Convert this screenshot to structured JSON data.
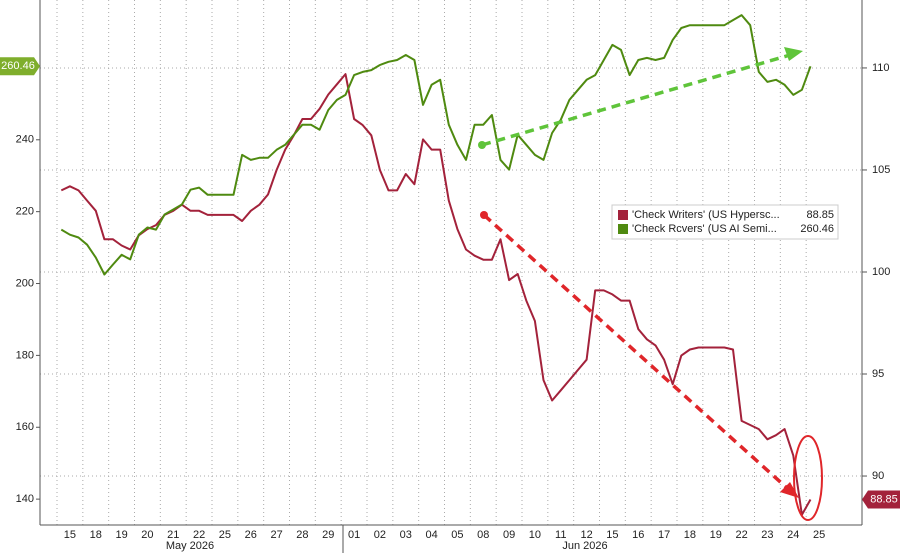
{
  "chart_data": {
    "type": "line",
    "categories": [
      null,
      "15",
      null,
      null,
      "18",
      null,
      null,
      "19",
      null,
      null,
      "20",
      null,
      null,
      "21",
      null,
      null,
      "22",
      null,
      null,
      "25",
      null,
      null,
      "26",
      null,
      null,
      "27",
      null,
      null,
      "28",
      null,
      null,
      "29",
      null,
      null,
      "01",
      null,
      null,
      "02",
      null,
      null,
      "03",
      null,
      null,
      "04",
      null,
      null,
      "05",
      null,
      null,
      "08",
      null,
      null,
      "09",
      null,
      null,
      "10",
      null,
      null,
      "11",
      null,
      null,
      "12",
      null,
      null,
      "15",
      null,
      null,
      "16",
      null,
      null,
      "17",
      null,
      null,
      "18",
      null,
      null,
      "19",
      null,
      null,
      "22",
      null,
      null,
      "23",
      null,
      null,
      "24",
      null,
      null,
      "25",
      null
    ],
    "annotations": [
      "May 2026",
      "Jun 2026"
    ],
    "series": [
      {
        "name": "'Check Writers' (US Hypersc...",
        "color": "#a3223b",
        "axis": "y2",
        "values": [
          104.0,
          104.2,
          104.0,
          103.5,
          103.0,
          101.6,
          101.6,
          101.3,
          101.1,
          101.8,
          102.1,
          102.3,
          102.8,
          103.0,
          103.3,
          103.0,
          103.0,
          102.8,
          102.8,
          102.8,
          102.8,
          102.5,
          103.0,
          103.3,
          103.8,
          105.0,
          106.0,
          106.7,
          107.5,
          107.5,
          108,
          108.7,
          109.2,
          109.7,
          107.5,
          107.2,
          106.7,
          105.0,
          104.0,
          104.0,
          104.8,
          104.3,
          106.5,
          106.0,
          106.0,
          103.5,
          102.1,
          101.1,
          100.8,
          100.6,
          100.6,
          101.6,
          99.6,
          99.9,
          98.6,
          97.6,
          94.7,
          93.7,
          94.2,
          94.7,
          95.2,
          95.7,
          99.1,
          99.1,
          98.9,
          98.6,
          98.6,
          97.2,
          96.7,
          96.4,
          95.7,
          94.5,
          95.9,
          96.2,
          96.3,
          96.3,
          96.3,
          96.3,
          96.2,
          92.7,
          92.5,
          92.3,
          91.8,
          92.0,
          92.3,
          91.0,
          88.1,
          88.85,
          null,
          null
        ]
      },
      {
        "name": "'Check Rcvers' (US AI Semi...",
        "color": "#4f8a10",
        "values": [
          215,
          213.6,
          212.8,
          210.8,
          207.2,
          202.5,
          205.3,
          208,
          206.7,
          213.6,
          215.6,
          215,
          219.2,
          220.6,
          222,
          226.1,
          226.7,
          224.7,
          224.7,
          224.7,
          224.7,
          235.8,
          234.4,
          235,
          235,
          237.2,
          238.6,
          241.4,
          244.2,
          244.2,
          242.8,
          248.3,
          251.1,
          252.5,
          258,
          258.9,
          259.4,
          260.8,
          261.7,
          262.2,
          263.6,
          262.2,
          249.7,
          255.3,
          256.7,
          244.2,
          238.6,
          234.4,
          244.2,
          244.2,
          246.9,
          234.4,
          231.7,
          241.4,
          238.6,
          235.8,
          234.4,
          241.9,
          245.6,
          251.1,
          253.9,
          256.7,
          258,
          262.2,
          266.4,
          265,
          258,
          262.2,
          262.8,
          262.2,
          262.8,
          267.8,
          271.1,
          271.9,
          271.9,
          271.9,
          271.9,
          271.9,
          273.3,
          274.7,
          271.9,
          258.9,
          256.1,
          256.7,
          255.3,
          252.5,
          253.9,
          260.46,
          null,
          null
        ]
      }
    ],
    "ylim": [
      132.8,
      278.9
    ],
    "yticks": [
      140,
      160,
      180,
      200,
      220,
      240
    ],
    "y2lim": [
      87.6,
      113.33
    ],
    "y2ticks": [
      90,
      95,
      100,
      105,
      110
    ],
    "grid": true,
    "legend": "right"
  }
}
